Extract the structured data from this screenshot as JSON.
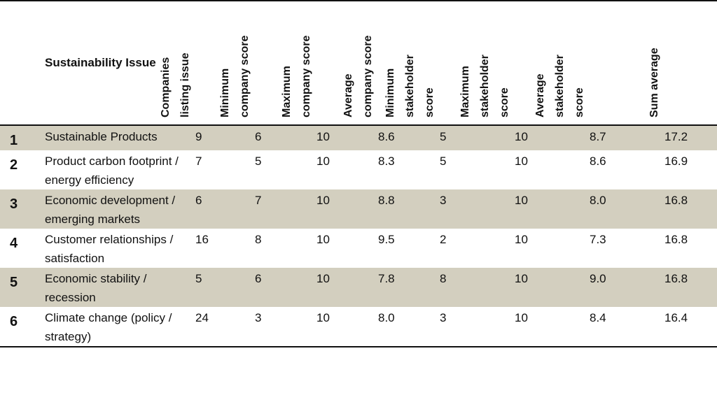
{
  "table": {
    "issue_header": "Sustainability Issue",
    "columns": [
      {
        "lines": [
          "Companies",
          "listing issue"
        ]
      },
      {
        "lines": [
          "Minimum",
          "company score"
        ]
      },
      {
        "lines": [
          "Maximum",
          "company score"
        ]
      },
      {
        "lines": [
          "Average",
          "company score"
        ]
      },
      {
        "lines": [
          "Minimum",
          "stakeholder",
          "score"
        ]
      },
      {
        "lines": [
          "Maximum",
          "stakeholder",
          "score"
        ]
      },
      {
        "lines": [
          "Average",
          "stakeholder",
          "score"
        ]
      },
      {
        "lines": [
          "Sum average"
        ]
      }
    ],
    "rows": [
      {
        "rank": "1",
        "issue": "Sustainable Products",
        "values": [
          "9",
          "6",
          "10",
          "8.6",
          "5",
          "10",
          "8.7",
          "17.2"
        ]
      },
      {
        "rank": "2",
        "issue": "Product carbon footprint / energy efficiency",
        "values": [
          "7",
          "5",
          "10",
          "8.3",
          "5",
          "10",
          "8.6",
          "16.9"
        ]
      },
      {
        "rank": "3",
        "issue": "Economic development / emerging markets",
        "values": [
          "6",
          "7",
          "10",
          "8.8",
          "3",
          "10",
          "8.0",
          "16.8"
        ]
      },
      {
        "rank": "4",
        "issue": "Customer relationships / satisfaction",
        "values": [
          "16",
          "8",
          "10",
          "9.5",
          "2",
          "10",
          "7.3",
          "16.8"
        ]
      },
      {
        "rank": "5",
        "issue": "Economic stability / recession",
        "values": [
          "5",
          "6",
          "10",
          "7.8",
          "8",
          "10",
          "9.0",
          "16.8"
        ]
      },
      {
        "rank": "6",
        "issue": "Climate change (policy / strategy)",
        "values": [
          "24",
          "3",
          "10",
          "8.0",
          "3",
          "10",
          "8.4",
          "16.4"
        ]
      }
    ]
  },
  "colors": {
    "shade": "#d3cfbf",
    "rule": "#111111"
  }
}
